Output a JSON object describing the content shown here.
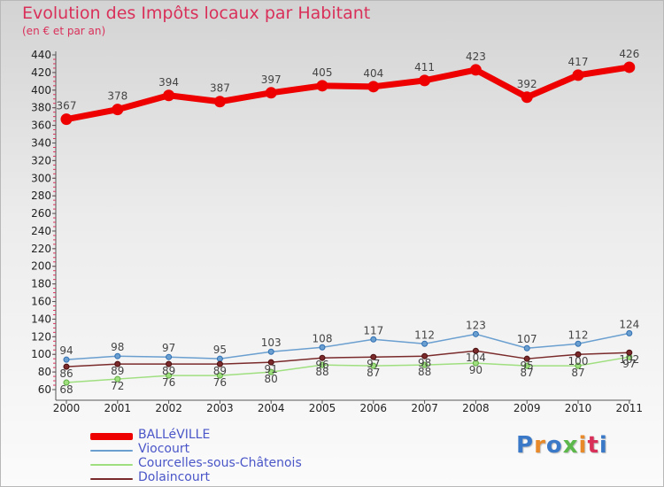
{
  "title": "Evolution des Impôts locaux par Habitant",
  "subtitle": "(en € et par an)",
  "logo": {
    "text": "Proxiti",
    "colors": [
      "#3a78c8",
      "#e8892a",
      "#3a78c8",
      "#5cb84a",
      "#e8892a",
      "#d9305a",
      "#3a78c8"
    ]
  },
  "chart_data": {
    "type": "line",
    "title": "Evolution des Impôts locaux par Habitant",
    "ylabel": "(en € et par an)",
    "xlabel": "",
    "categories": [
      "2000",
      "2001",
      "2002",
      "2003",
      "2004",
      "2005",
      "2006",
      "2007",
      "2008",
      "2009",
      "2010",
      "2011"
    ],
    "ylim": [
      60,
      440
    ],
    "yticks": [
      60,
      80,
      100,
      120,
      140,
      160,
      180,
      200,
      220,
      240,
      260,
      280,
      300,
      320,
      340,
      360,
      380,
      400,
      420,
      440
    ],
    "grid": false,
    "series": [
      {
        "name": "BALLéVILLE",
        "color": "#ee0000",
        "values": [
          367,
          378,
          394,
          387,
          397,
          405,
          404,
          411,
          423,
          392,
          417,
          426
        ]
      },
      {
        "name": "Viocourt",
        "color": "#6a9fd0",
        "values": [
          94,
          98,
          97,
          95,
          103,
          108,
          117,
          112,
          123,
          107,
          112,
          124
        ]
      },
      {
        "name": "Courcelles-sous-Châtenois",
        "color": "#9fdf7f",
        "values": [
          68,
          72,
          76,
          76,
          80,
          88,
          87,
          88,
          90,
          87,
          87,
          97
        ]
      },
      {
        "name": "Dolaincourt",
        "color": "#7a2a2a",
        "values": [
          86,
          89,
          89,
          89,
          91,
          96,
          97,
          98,
          104,
          95,
          100,
          102
        ]
      }
    ],
    "legend_position": "bottom-left"
  }
}
